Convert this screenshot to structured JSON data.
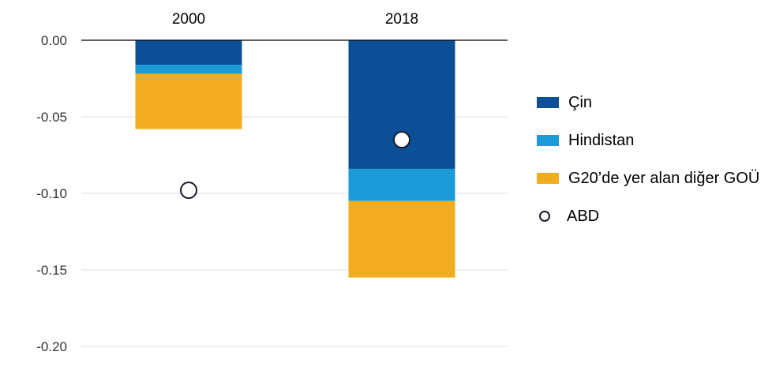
{
  "chart_data": {
    "type": "bar",
    "stacked": true,
    "categories": [
      "2000",
      "2018"
    ],
    "ylim": [
      -0.2,
      0.0
    ],
    "yticks": [
      0.0,
      -0.05,
      -0.1,
      -0.15,
      -0.2
    ],
    "ytick_labels": [
      "0.00",
      "-0.05",
      "-0.10",
      "-0.15",
      "-0.20"
    ],
    "grid": true,
    "legend_position": "right",
    "series": [
      {
        "name": "Çin",
        "color": "#0b4f96",
        "values": [
          -0.016,
          -0.084
        ]
      },
      {
        "name": "Hindistan",
        "color": "#1a9ad6",
        "values": [
          -0.006,
          -0.021
        ]
      },
      {
        "name": "G20’de yer alan diğer GOÜ",
        "color": "#f2ac1f",
        "values": [
          -0.036,
          -0.05
        ]
      }
    ],
    "markers": {
      "name": "ABD",
      "values": [
        -0.098,
        -0.065
      ]
    }
  }
}
